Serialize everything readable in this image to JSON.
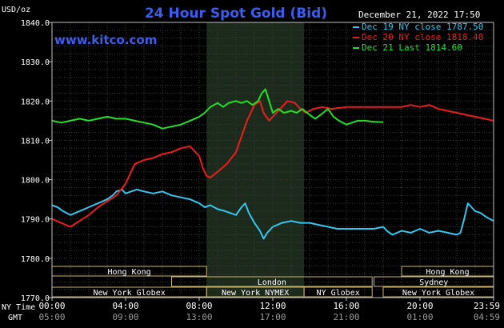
{
  "header": {
    "title": "24 Hour Spot Gold (Bid)",
    "unit": "USD/oz",
    "timestamp": "December 21, 2022 17:50",
    "website": "www.kitco.com"
  },
  "legend": [
    {
      "text": "Dec 19 NY close 1787.50",
      "color": "#33c6f0"
    },
    {
      "text": "Dec 20 NY close 1818.40",
      "color": "#ee1c1c"
    },
    {
      "text": "Dec 21 Last 1814.60",
      "color": "#22e022"
    }
  ],
  "footer": {
    "ny_time_label": "NY Time",
    "gmt_label": "GMT",
    "ny_times": [
      "00:00",
      "04:00",
      "08:00",
      "12:00",
      "16:00",
      "20:00",
      "23:59"
    ],
    "gmt_times": [
      "05:00",
      "09:00",
      "13:00",
      "17:00",
      "21:00",
      "01:00",
      "04:59"
    ]
  },
  "markets": [
    {
      "name": "Hong Kong",
      "start": 0.0,
      "end": 8.4
    },
    {
      "name": "London",
      "start": 6.5,
      "end": 17.4
    },
    {
      "name": "New York Globex",
      "start": 0.0,
      "end": 8.4
    },
    {
      "name": "New York NYMEX",
      "start": 8.4,
      "end": 13.7
    },
    {
      "name": "NY Globex",
      "start": 13.7,
      "end": 17.4
    },
    {
      "name": "Hong Kong",
      "start": 19.0,
      "end": 24.0
    },
    {
      "name": "Sydney",
      "start": 17.5,
      "end": 24.0
    },
    {
      "name": "New York Globex",
      "start": 18.0,
      "end": 24.0
    }
  ],
  "chart_data": {
    "type": "line",
    "title": "24 Hour Spot Gold (Bid)",
    "ylabel": "USD/oz",
    "ylim": [
      1770,
      1840
    ],
    "xlim": [
      0,
      24
    ],
    "y_ticks": [
      "1770.0",
      "1780.0",
      "1790.0",
      "1800.0",
      "1810.0",
      "1820.0",
      "1830.0",
      "1840.0"
    ],
    "x_ticks": [
      "00:00",
      "04:00",
      "08:00",
      "12:00",
      "16:00",
      "20:00",
      "23:59"
    ],
    "shaded_range": [
      8.4,
      13.7
    ],
    "grid": true,
    "series": [
      {
        "name": "Dec 19 NY close 1787.50",
        "color": "#33c6f0",
        "points": [
          [
            0,
            1793.5
          ],
          [
            0.3,
            1793
          ],
          [
            0.6,
            1792
          ],
          [
            1,
            1791
          ],
          [
            1.5,
            1792
          ],
          [
            2,
            1793
          ],
          [
            2.5,
            1794
          ],
          [
            3,
            1795
          ],
          [
            3.3,
            1796
          ],
          [
            3.5,
            1797
          ],
          [
            3.8,
            1797.5
          ],
          [
            4,
            1796.5
          ],
          [
            4.3,
            1797
          ],
          [
            4.6,
            1797.5
          ],
          [
            5,
            1797
          ],
          [
            5.5,
            1796.5
          ],
          [
            6,
            1797
          ],
          [
            6.5,
            1796
          ],
          [
            7,
            1795.5
          ],
          [
            7.5,
            1795
          ],
          [
            8,
            1794
          ],
          [
            8.3,
            1793
          ],
          [
            8.6,
            1793.5
          ],
          [
            9,
            1792.5
          ],
          [
            9.4,
            1792
          ],
          [
            9.7,
            1791.5
          ],
          [
            10,
            1791
          ],
          [
            10.3,
            1793
          ],
          [
            10.5,
            1794
          ],
          [
            10.7,
            1791.5
          ],
          [
            11,
            1789
          ],
          [
            11.3,
            1787
          ],
          [
            11.5,
            1785
          ],
          [
            11.7,
            1786.5
          ],
          [
            12,
            1788
          ],
          [
            12.5,
            1789
          ],
          [
            13,
            1789.5
          ],
          [
            13.5,
            1789
          ],
          [
            14,
            1789
          ],
          [
            14.5,
            1788.5
          ],
          [
            15,
            1788
          ],
          [
            15.5,
            1787.5
          ],
          [
            16,
            1787.5
          ],
          [
            16.5,
            1787.5
          ],
          [
            17,
            1787.5
          ],
          [
            17.5,
            1787.5
          ],
          [
            18,
            1788
          ],
          [
            18.2,
            1787
          ],
          [
            18.5,
            1786
          ],
          [
            19,
            1787
          ],
          [
            19.5,
            1786.5
          ],
          [
            20,
            1787.5
          ],
          [
            20.5,
            1786.5
          ],
          [
            21,
            1787
          ],
          [
            21.5,
            1786.5
          ],
          [
            22,
            1786
          ],
          [
            22.2,
            1786.5
          ],
          [
            22.4,
            1790
          ],
          [
            22.6,
            1794
          ],
          [
            22.8,
            1793
          ],
          [
            23,
            1792
          ],
          [
            23.3,
            1791.5
          ],
          [
            23.6,
            1790.5
          ],
          [
            24,
            1789.5
          ]
        ]
      },
      {
        "name": "Dec 20 NY close 1818.40",
        "color": "#ee1c1c",
        "points": [
          [
            0,
            1790
          ],
          [
            0.5,
            1789
          ],
          [
            1,
            1788
          ],
          [
            1.5,
            1789.5
          ],
          [
            2,
            1791
          ],
          [
            2.5,
            1793
          ],
          [
            3,
            1794.5
          ],
          [
            3.5,
            1796
          ],
          [
            4,
            1799
          ],
          [
            4.3,
            1802
          ],
          [
            4.5,
            1804
          ],
          [
            5,
            1805
          ],
          [
            5.5,
            1805.5
          ],
          [
            6,
            1806.5
          ],
          [
            6.5,
            1807
          ],
          [
            7,
            1808
          ],
          [
            7.5,
            1808.5
          ],
          [
            8,
            1806
          ],
          [
            8.2,
            1803
          ],
          [
            8.4,
            1801
          ],
          [
            8.6,
            1800.5
          ],
          [
            9,
            1802
          ],
          [
            9.5,
            1804
          ],
          [
            10,
            1807
          ],
          [
            10.3,
            1811
          ],
          [
            10.6,
            1815
          ],
          [
            11,
            1819
          ],
          [
            11.3,
            1820
          ],
          [
            11.5,
            1817
          ],
          [
            11.8,
            1815
          ],
          [
            12,
            1816
          ],
          [
            12.4,
            1818
          ],
          [
            12.8,
            1820
          ],
          [
            13.2,
            1819.5
          ],
          [
            13.5,
            1818
          ],
          [
            13.8,
            1817
          ],
          [
            14.2,
            1818
          ],
          [
            14.7,
            1818.5
          ],
          [
            15.2,
            1818
          ],
          [
            16,
            1818.5
          ],
          [
            17,
            1818.5
          ],
          [
            18,
            1818.5
          ],
          [
            19,
            1818.5
          ],
          [
            19.5,
            1819
          ],
          [
            20,
            1818.5
          ],
          [
            20.5,
            1819
          ],
          [
            21,
            1818
          ],
          [
            21.5,
            1817.5
          ],
          [
            22,
            1817
          ],
          [
            22.5,
            1816.5
          ],
          [
            23,
            1816
          ],
          [
            23.5,
            1815.5
          ],
          [
            24,
            1815
          ]
        ]
      },
      {
        "name": "Dec 21 Last 1814.60",
        "color": "#22e022",
        "points": [
          [
            0,
            1815
          ],
          [
            0.5,
            1814.5
          ],
          [
            1,
            1815
          ],
          [
            1.5,
            1815.5
          ],
          [
            2,
            1815
          ],
          [
            2.5,
            1815.5
          ],
          [
            3,
            1816
          ],
          [
            3.5,
            1815.5
          ],
          [
            4,
            1815.5
          ],
          [
            4.5,
            1815
          ],
          [
            5,
            1814.5
          ],
          [
            5.5,
            1814
          ],
          [
            6,
            1813
          ],
          [
            6.5,
            1813.5
          ],
          [
            7,
            1814
          ],
          [
            7.5,
            1815
          ],
          [
            8,
            1816
          ],
          [
            8.3,
            1817
          ],
          [
            8.6,
            1818.5
          ],
          [
            9,
            1819.5
          ],
          [
            9.3,
            1818.5
          ],
          [
            9.6,
            1819.5
          ],
          [
            10,
            1820
          ],
          [
            10.3,
            1819.5
          ],
          [
            10.6,
            1820
          ],
          [
            10.9,
            1819
          ],
          [
            11.2,
            1820
          ],
          [
            11.4,
            1822
          ],
          [
            11.6,
            1823
          ],
          [
            11.8,
            1820
          ],
          [
            12,
            1817
          ],
          [
            12.3,
            1818
          ],
          [
            12.6,
            1817
          ],
          [
            13,
            1817.5
          ],
          [
            13.3,
            1817
          ],
          [
            13.6,
            1818
          ],
          [
            14,
            1816.5
          ],
          [
            14.3,
            1815.5
          ],
          [
            14.6,
            1816.5
          ],
          [
            15,
            1818
          ],
          [
            15.3,
            1816
          ],
          [
            15.6,
            1815
          ],
          [
            16,
            1814
          ],
          [
            16.3,
            1814.5
          ],
          [
            16.6,
            1815
          ],
          [
            17,
            1815
          ],
          [
            17.5,
            1814.7
          ],
          [
            18,
            1814.6
          ]
        ]
      }
    ]
  }
}
